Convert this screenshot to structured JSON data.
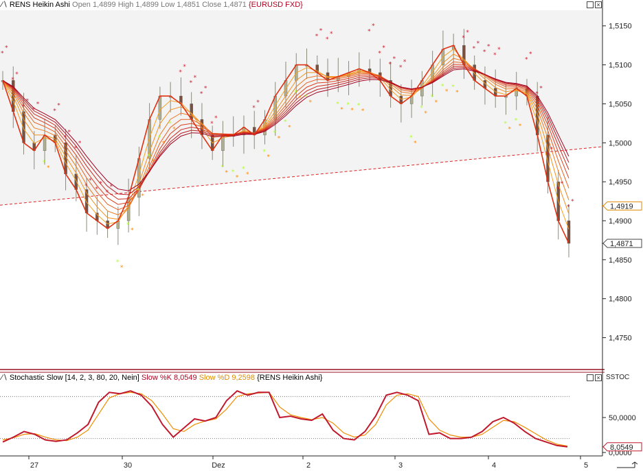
{
  "main_panel": {
    "title_prefix": "RENS Heikin Ashi",
    "open_label": "Open",
    "open": "1,4899",
    "high_label": "High",
    "high": "1,4899",
    "low_label": "Low",
    "low": "1,4851",
    "close_label": "Close",
    "close": "1,4871",
    "symbol": "{EURUSD FXD}",
    "y_ticks": [
      "1,5150",
      "1,5100",
      "1,5050",
      "1,5000",
      "1,4950",
      "1,4900",
      "1,4850",
      "1,4800",
      "1,4750"
    ],
    "markers": [
      {
        "value": "1,4919",
        "color": "#e08a00"
      },
      {
        "value": "1,4871",
        "color": "#444444"
      }
    ]
  },
  "stoch_panel": {
    "title": "Stochastic Slow [14, 2, 3, 80, 20, Nein]",
    "k_label": "Slow %K 8,0549",
    "d_label": "Slow %D 9,2598",
    "source": "{RENS Heikin Ashi}",
    "axis_title": "SSTOC",
    "y_ticks": [
      "50,0000",
      "0,0000"
    ],
    "marker": "8,0549",
    "levels": [
      80,
      20
    ]
  },
  "x_axis": {
    "labels": [
      "27",
      "30",
      "Dez",
      "2",
      "3",
      "4",
      "5"
    ]
  },
  "colors": {
    "k_line": "#c0182c",
    "d_line": "#f08c00",
    "trend_line": "#dd2222",
    "ribbon_dark": "#a00020",
    "ribbon_light": "#f5a020",
    "sar_green": "#aaff22",
    "sar_red": "#cc2233",
    "sar_orange": "#ff8800"
  },
  "chart_data": [
    {
      "type": "line",
      "title": "RENS Heikin Ashi",
      "ylim": [
        1.471,
        1.517
      ],
      "x_labels": [
        "27",
        "30",
        "Dez",
        "2",
        "3",
        "4",
        "5"
      ],
      "series": [
        {
          "name": "Heikin Ashi Close",
          "values": [
            1.508,
            1.504,
            1.5,
            1.499,
            1.501,
            1.5,
            1.496,
            1.494,
            1.491,
            1.49,
            1.489,
            1.49,
            1.493,
            1.498,
            1.503,
            1.506,
            1.506,
            1.505,
            1.503,
            1.501,
            1.499,
            1.501,
            1.501,
            1.502,
            1.501,
            1.503,
            1.506,
            1.508,
            1.51,
            1.51,
            1.509,
            1.508,
            1.5085,
            1.509,
            1.5095,
            1.509,
            1.508,
            1.506,
            1.505,
            1.506,
            1.508,
            1.51,
            1.512,
            1.5125,
            1.51,
            1.508,
            1.507,
            1.506,
            1.506,
            1.507,
            1.506,
            1.501,
            1.495,
            1.49,
            1.4871
          ]
        }
      ]
    },
    {
      "type": "line",
      "title": "Stochastic Slow [14, 2, 3, 80, 20, Nein]",
      "ylim": [
        0,
        100
      ],
      "series": [
        {
          "name": "Slow %K",
          "values": [
            15,
            22,
            30,
            26,
            18,
            16,
            18,
            28,
            40,
            72,
            86,
            84,
            88,
            82,
            66,
            40,
            22,
            35,
            48,
            45,
            50,
            74,
            88,
            82,
            86,
            86,
            50,
            52,
            48,
            46,
            55,
            32,
            20,
            18,
            30,
            52,
            82,
            86,
            82,
            74,
            26,
            28,
            20,
            20,
            22,
            30,
            44,
            50,
            42,
            30,
            20,
            15,
            10,
            8.0549
          ]
        },
        {
          "name": "Slow %D",
          "values": [
            18,
            21,
            26,
            27,
            22,
            18,
            17,
            22,
            32,
            55,
            78,
            84,
            86,
            84,
            74,
            55,
            34,
            30,
            40,
            45,
            48,
            62,
            80,
            84,
            85,
            86,
            65,
            54,
            50,
            47,
            50,
            42,
            28,
            22,
            25,
            40,
            68,
            82,
            84,
            80,
            48,
            32,
            25,
            22,
            22,
            26,
            36,
            46,
            44,
            36,
            27,
            18,
            12,
            9.2598
          ]
        }
      ]
    }
  ]
}
